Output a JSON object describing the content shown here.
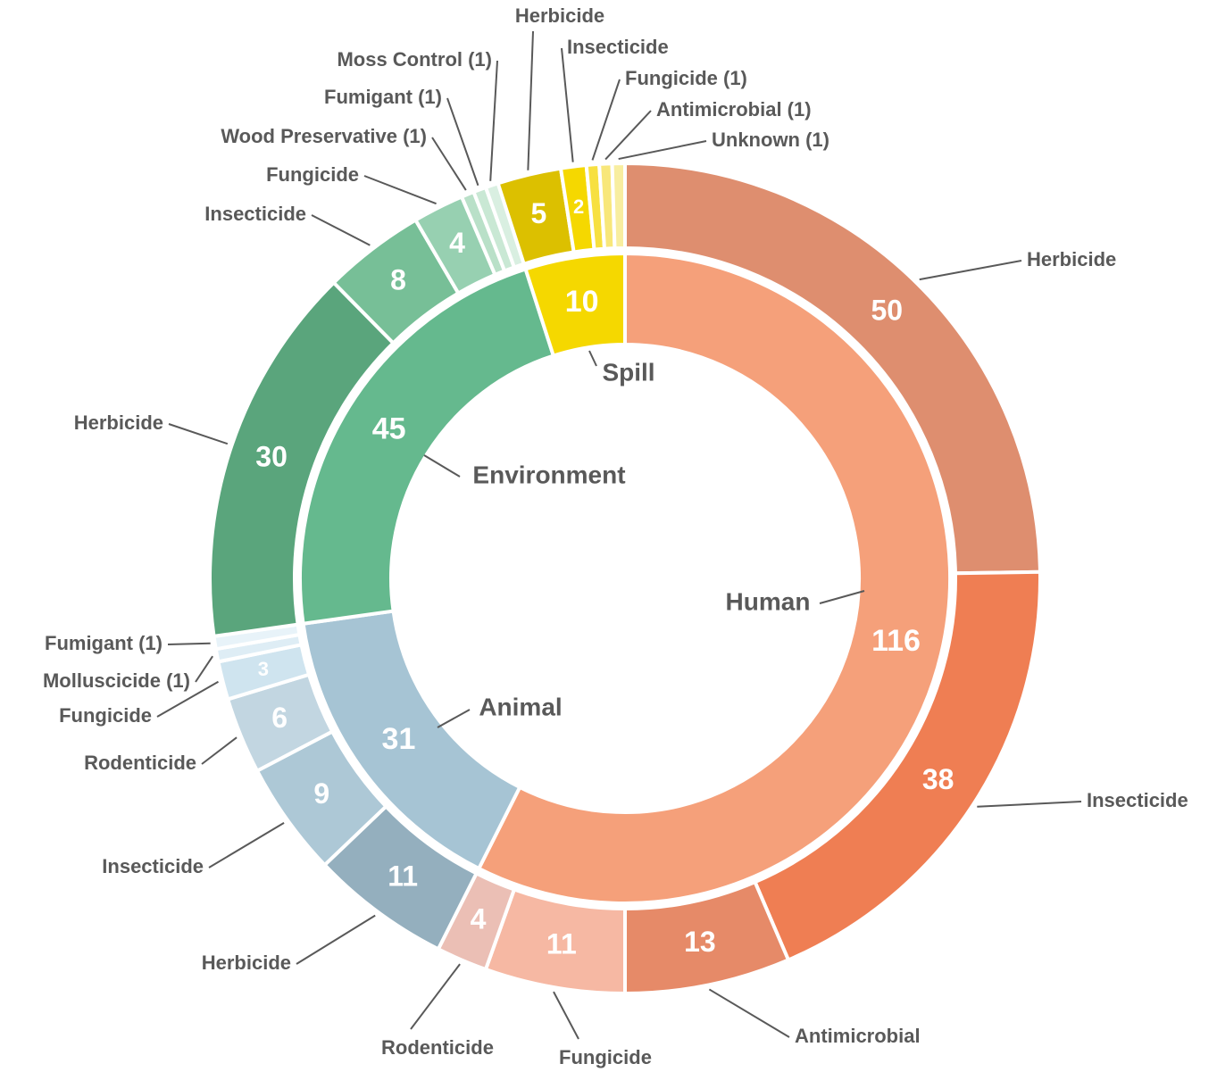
{
  "chart_data": {
    "type": "sunburst",
    "categories": [
      {
        "name": "Human",
        "value": 116,
        "color": "#f5a07a",
        "children": [
          {
            "name": "Herbicide",
            "value": 50,
            "color": "#de8e6f"
          },
          {
            "name": "Insecticide",
            "value": 38,
            "color": "#ef7e53"
          },
          {
            "name": "Antimicrobial",
            "value": 13,
            "color": "#e68a68"
          },
          {
            "name": "Fungicide",
            "value": 11,
            "color": "#f6b8a3"
          },
          {
            "name": "Rodenticide",
            "value": 4,
            "color": "#ebbfb5"
          }
        ]
      },
      {
        "name": "Animal",
        "value": 31,
        "color": "#a6c4d4",
        "children": [
          {
            "name": "Herbicide",
            "value": 11,
            "color": "#94afbe"
          },
          {
            "name": "Insecticide",
            "value": 9,
            "color": "#adc8d6"
          },
          {
            "name": "Rodenticide",
            "value": 6,
            "color": "#c2d6e1"
          },
          {
            "name": "Fungicide",
            "value": 3,
            "color": "#cfe4ef"
          },
          {
            "name": "Molluscicide (1)",
            "value": 1,
            "color": "#deedf5"
          },
          {
            "name": "Fumigant (1)",
            "value": 1,
            "color": "#e8f3f9"
          }
        ]
      },
      {
        "name": "Environment",
        "value": 45,
        "color": "#65b98e",
        "children": [
          {
            "name": "Herbicide",
            "value": 30,
            "color": "#5aa57c"
          },
          {
            "name": "Insecticide",
            "value": 8,
            "color": "#77bf97"
          },
          {
            "name": "Fungicide",
            "value": 4,
            "color": "#97d0b1"
          },
          {
            "name": "Wood Preservative (1)",
            "value": 1,
            "color": "#b9e0c8"
          },
          {
            "name": "Fumigant (1)",
            "value": 1,
            "color": "#c9e8d4"
          },
          {
            "name": "Moss Control (1)",
            "value": 1,
            "color": "#d9efe1"
          }
        ]
      },
      {
        "name": "Spill",
        "value": 10,
        "color": "#f5d800",
        "children": [
          {
            "name": "Herbicide",
            "value": 5,
            "color": "#dcc000"
          },
          {
            "name": "Insecticide",
            "value": 2,
            "color": "#f5d800"
          },
          {
            "name": "Fungicide (1)",
            "value": 1,
            "color": "#f7e040"
          },
          {
            "name": "Antimicrobial (1)",
            "value": 1,
            "color": "#f8e77a"
          },
          {
            "name": "Unknown (1)",
            "value": 1,
            "color": "#f8eea0"
          }
        ]
      }
    ]
  }
}
